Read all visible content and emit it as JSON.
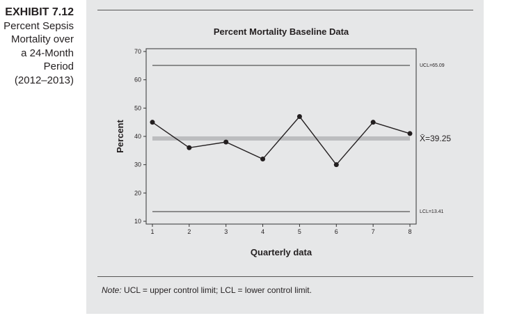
{
  "caption": {
    "exhibit": "EXHIBIT 7.12",
    "lines": [
      "Percent Sepsis",
      "Mortality over",
      "a 24-Month",
      "Period",
      "(2012–2013)"
    ]
  },
  "note": {
    "label": "Note:",
    "text": " UCL = upper control limit; LCL = lower control limit."
  },
  "chart_data": {
    "type": "line",
    "title": "Percent Mortality Baseline Data",
    "xlabel": "Quarterly data",
    "ylabel": "Percent",
    "x": [
      1,
      2,
      3,
      4,
      5,
      6,
      7,
      8
    ],
    "values": [
      45,
      36,
      38,
      32,
      47,
      30,
      45,
      41
    ],
    "ylim": [
      10,
      70
    ],
    "yticks": [
      10,
      20,
      30,
      40,
      50,
      60,
      70
    ],
    "xticks": [
      1,
      2,
      3,
      4,
      5,
      6,
      7,
      8
    ],
    "reference_lines": [
      {
        "label": "UCL=65.09",
        "value": 65.09,
        "color": "#555555"
      },
      {
        "label": "X̄=39.25",
        "value": 39.25,
        "color": "#bcbdbf"
      },
      {
        "label": "LCL=13.41",
        "value": 13.41,
        "color": "#555555"
      }
    ],
    "grid": false
  }
}
